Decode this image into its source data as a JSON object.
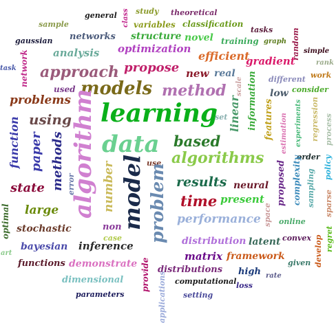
{
  "words": [
    {
      "text": "general",
      "color": "#1a1a1a"
    },
    {
      "text": "class",
      "color": "#c0208a"
    },
    {
      "text": "study",
      "color": "#8a9a2a"
    },
    {
      "text": "theoretical",
      "color": "#7a2a6a"
    },
    {
      "text": "sample",
      "color": "#8a9a4a"
    },
    {
      "text": "variables",
      "color": "#8a9a1a"
    },
    {
      "text": "classification",
      "color": "#6a9a1a"
    },
    {
      "text": "tasks",
      "color": "#5a1a3a"
    },
    {
      "text": "gaussian",
      "color": "#1a1a3a"
    },
    {
      "text": "networks",
      "color": "#4a5a7a"
    },
    {
      "text": "structure",
      "color": "#3aaa3a"
    },
    {
      "text": "novel",
      "color": "#4aca4a"
    },
    {
      "text": "training",
      "color": "#3aaa5a"
    },
    {
      "text": "graph",
      "color": "#5a7a1a"
    },
    {
      "text": "random",
      "color": "#9a1a4a"
    },
    {
      "text": "analysis",
      "color": "#6aaa9a"
    },
    {
      "text": "optimization",
      "color": "#b040c0"
    },
    {
      "text": "simple",
      "color": "#3a0a1a"
    },
    {
      "text": "efficient",
      "color": "#da6a2a"
    },
    {
      "text": "task",
      "color": "#4a5aaa"
    },
    {
      "text": "network",
      "color": "#c02a8a"
    },
    {
      "text": "gradient",
      "color": "#da1a6a"
    },
    {
      "text": "rank",
      "color": "#9aaa8a"
    },
    {
      "text": "approach",
      "color": "#9a5a7a"
    },
    {
      "text": "propose",
      "color": "#c0206a"
    },
    {
      "text": "new",
      "color": "#8a1a2a"
    },
    {
      "text": "real",
      "color": "#5a7a9a"
    },
    {
      "text": "scale",
      "color": "#caa0a0"
    },
    {
      "text": "different",
      "color": "#8a8aba"
    },
    {
      "text": "work",
      "color": "#c07a1a"
    },
    {
      "text": "used",
      "color": "#7a3a8a"
    },
    {
      "text": "models",
      "color": "#7a6a1a"
    },
    {
      "text": "method",
      "color": "#b070b0"
    },
    {
      "text": "linear",
      "color": "#4a9a6a"
    },
    {
      "text": "information",
      "color": "#3aaa3a"
    },
    {
      "text": "low",
      "color": "#4a5a6a"
    },
    {
      "text": "consider",
      "color": "#4aaa2a"
    },
    {
      "text": "problems",
      "color": "#8a3a1a"
    },
    {
      "text": "learning",
      "color": "#0ab01a"
    },
    {
      "text": "set",
      "color": "#8ab0b0"
    },
    {
      "text": "features",
      "color": "#c0a01a"
    },
    {
      "text": "estimation",
      "color": "#da70b0"
    },
    {
      "text": "experiments",
      "color": "#4aba7a"
    },
    {
      "text": "regression",
      "color": "#caba6a"
    },
    {
      "text": "process",
      "color": "#aac0aa"
    },
    {
      "text": "using",
      "color": "#6a4a4a"
    },
    {
      "text": "algorithm",
      "color": "#d080d0"
    },
    {
      "text": "function",
      "color": "#3a3aaa"
    },
    {
      "text": "paper",
      "color": "#3a3aaa"
    },
    {
      "text": "methods",
      "color": "#2a2a8a"
    },
    {
      "text": "data",
      "color": "#6ad090"
    },
    {
      "text": "based",
      "color": "#2a7a2a"
    },
    {
      "text": "algorithms",
      "color": "#8aca4a"
    },
    {
      "text": "order",
      "color": "#1a2a2a"
    },
    {
      "text": "error",
      "color": "#6a7aaa"
    },
    {
      "text": "number",
      "color": "#caba5a"
    },
    {
      "text": "model",
      "color": "#1a2a4a"
    },
    {
      "text": "use",
      "color": "#7a3a2a"
    },
    {
      "text": "problem",
      "color": "#6a8ab0"
    },
    {
      "text": "proposed",
      "color": "#6a2a8a"
    },
    {
      "text": "complexity",
      "color": "#3a8aba"
    },
    {
      "text": "policy",
      "color": "#2ab0da"
    },
    {
      "text": "state",
      "color": "#8a0a3a"
    },
    {
      "text": "results",
      "color": "#1a6a4a"
    },
    {
      "text": "time",
      "color": "#b0102a"
    },
    {
      "text": "neural",
      "color": "#6a1a2a"
    },
    {
      "text": "sampling",
      "color": "#5aaaaa"
    },
    {
      "text": "sparse",
      "color": "#ca8a6a"
    },
    {
      "text": "present",
      "color": "#3aca3a"
    },
    {
      "text": "large",
      "color": "#6a8a0a"
    },
    {
      "text": "optimal",
      "color": "#3a6a2a"
    },
    {
      "text": "space",
      "color": "#ca9a9a"
    },
    {
      "text": "performance",
      "color": "#9ab0da"
    },
    {
      "text": "online",
      "color": "#4aaa6a"
    },
    {
      "text": "stochastic",
      "color": "#6a3a2a"
    },
    {
      "text": "non",
      "color": "#8a3a9a"
    },
    {
      "text": "case",
      "color": "#b0ca4a"
    },
    {
      "text": "convex",
      "color": "#5a1a5a"
    },
    {
      "text": "bayesian",
      "color": "#4a4aaa"
    },
    {
      "text": "inference",
      "color": "#2a2a2a"
    },
    {
      "text": "distribution",
      "color": "#b070da"
    },
    {
      "text": "latent",
      "color": "#3a6a5a"
    },
    {
      "text": "develop",
      "color": "#ca5a1a"
    },
    {
      "text": "regret",
      "color": "#5aba1a"
    },
    {
      "text": "art",
      "color": "#8aca8a"
    },
    {
      "text": "matrix",
      "color": "#6a0a8a"
    },
    {
      "text": "framework",
      "color": "#ca5a1a"
    },
    {
      "text": "functions",
      "color": "#5a1a2a"
    },
    {
      "text": "demonstrate",
      "color": "#da70c0"
    },
    {
      "text": "provide",
      "color": "#b0106a"
    },
    {
      "text": "distributions",
      "color": "#7a2a7a"
    },
    {
      "text": "high",
      "color": "#1a3a7a"
    },
    {
      "text": "given",
      "color": "#3a7a6a"
    },
    {
      "text": "rate",
      "color": "#5a5a8a"
    },
    {
      "text": "dimensional",
      "color": "#7ac0c0"
    },
    {
      "text": "computational",
      "color": "#1a1a1a"
    },
    {
      "text": "loss",
      "color": "#3a2a8a"
    },
    {
      "text": "parameters",
      "color": "#1a1a5a"
    },
    {
      "text": "applications",
      "color": "#9aaada"
    },
    {
      "text": "setting",
      "color": "#4a4a9a"
    }
  ]
}
